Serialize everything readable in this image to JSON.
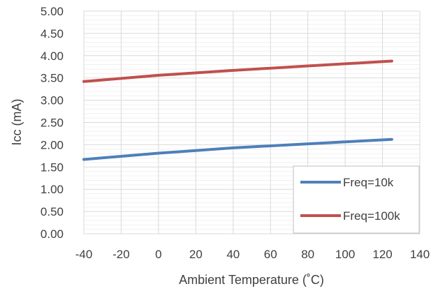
{
  "chart_data": {
    "type": "line",
    "title": "",
    "xlabel": "Ambient Temperature (˚C)",
    "ylabel": "Icc (mA)",
    "xlim": [
      -40,
      140
    ],
    "ylim": [
      0,
      5
    ],
    "x_ticks": [
      "-40",
      "-20",
      "0",
      "20",
      "40",
      "60",
      "80",
      "100",
      "120",
      "140"
    ],
    "y_ticks": [
      "0.00",
      "0.50",
      "1.00",
      "1.50",
      "2.00",
      "2.50",
      "3.00",
      "3.50",
      "4.00",
      "4.50",
      "5.00"
    ],
    "grid": true,
    "legend_position": "bottom-right",
    "series": [
      {
        "name": "Freq=10k",
        "color": "#4e7fba",
        "x": [
          -40,
          0,
          40,
          80,
          125
        ],
        "y": [
          1.67,
          1.81,
          1.93,
          2.02,
          2.12
        ]
      },
      {
        "name": "Freq=100k",
        "color": "#c0504d",
        "x": [
          -40,
          0,
          40,
          80,
          125
        ],
        "y": [
          3.42,
          3.56,
          3.67,
          3.77,
          3.88
        ]
      }
    ]
  }
}
